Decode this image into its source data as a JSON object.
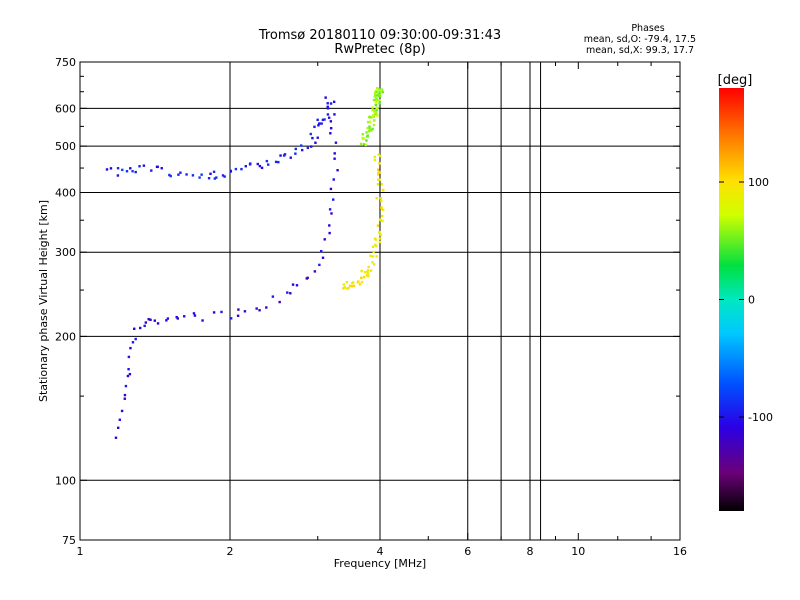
{
  "chart_data": {
    "type": "scatter",
    "title": "Tromsø 20180110 09:30:00-09:31:43",
    "subtitle": "RwPretec (8p)",
    "phase_box": {
      "title": "Phases",
      "line_o": "mean, sd,O: -79.4, 17.5",
      "line_x": "mean, sd,X:  99.3, 17.7"
    },
    "xlabel": "Frequency [MHz]",
    "ylabel": "Stationary phase Virtual Height [km]",
    "x_scale": "log",
    "y_scale": "log",
    "xlim": [
      1,
      16
    ],
    "ylim": [
      75,
      750
    ],
    "grid": true,
    "x_ticks": [
      {
        "value": 1,
        "label": "1"
      },
      {
        "value": 2,
        "label": "2"
      },
      {
        "value": 4,
        "label": "4"
      },
      {
        "value": 6,
        "label": "6"
      },
      {
        "value": 8,
        "label": "8"
      },
      {
        "value": 10,
        "label": "10"
      },
      {
        "value": 16,
        "label": "16"
      }
    ],
    "x_minor_ticks": [
      3,
      5,
      7,
      9,
      12,
      14
    ],
    "x_gridlines": [
      2,
      4,
      6,
      7,
      8,
      8.4
    ],
    "y_ticks": [
      {
        "value": 75,
        "label": "75"
      },
      {
        "value": 100,
        "label": "100"
      },
      {
        "value": 200,
        "label": "200"
      },
      {
        "value": 300,
        "label": "300"
      },
      {
        "value": 400,
        "label": "400"
      },
      {
        "value": 500,
        "label": "500"
      },
      {
        "value": 600,
        "label": "600"
      },
      {
        "value": 750,
        "label": "750"
      }
    ],
    "y_minor_ticks": [
      150,
      250,
      350,
      450,
      550,
      650,
      700
    ],
    "y_gridlines": [
      100,
      200,
      300,
      400,
      500,
      600
    ],
    "colorbar": {
      "label": "[deg]",
      "range": [
        -180,
        180
      ],
      "ticks": [
        {
          "value": 100,
          "label": "100"
        },
        {
          "value": 0,
          "label": "0"
        },
        {
          "value": -100,
          "label": "-100"
        }
      ]
    },
    "traces": [
      {
        "name": "",
        "phase": -110,
        "points": [
          [
            1.2,
            125
          ],
          [
            1.22,
            150
          ],
          [
            1.25,
            175
          ],
          [
            1.3,
            205
          ],
          [
            1.38,
            215
          ],
          [
            1.5,
            218
          ],
          [
            1.7,
            220
          ],
          [
            2.0,
            222
          ],
          [
            2.3,
            230
          ],
          [
            2.6,
            245
          ],
          [
            2.9,
            270
          ],
          [
            3.1,
            310
          ],
          [
            3.2,
            380
          ],
          [
            3.25,
            460
          ],
          [
            3.22,
            560
          ],
          [
            3.18,
            620
          ]
        ]
      },
      {
        "name": "",
        "phase": -95,
        "points": [
          [
            1.15,
            440
          ],
          [
            1.3,
            450
          ],
          [
            1.5,
            440
          ],
          [
            1.8,
            435
          ],
          [
            2.0,
            440
          ],
          [
            2.3,
            455
          ],
          [
            2.6,
            475
          ],
          [
            2.9,
            510
          ],
          [
            3.05,
            560
          ],
          [
            3.15,
            620
          ]
        ]
      },
      {
        "name": "",
        "phase": 95,
        "points": [
          [
            3.4,
            255
          ],
          [
            3.6,
            260
          ],
          [
            3.8,
            275
          ],
          [
            3.95,
            310
          ],
          [
            4.0,
            360
          ],
          [
            4.0,
            420
          ],
          [
            3.95,
            480
          ]
        ]
      },
      {
        "name": "",
        "phase": 60,
        "points": [
          [
            3.7,
            510
          ],
          [
            3.85,
            560
          ],
          [
            3.95,
            620
          ],
          [
            4.0,
            660
          ]
        ]
      }
    ]
  }
}
